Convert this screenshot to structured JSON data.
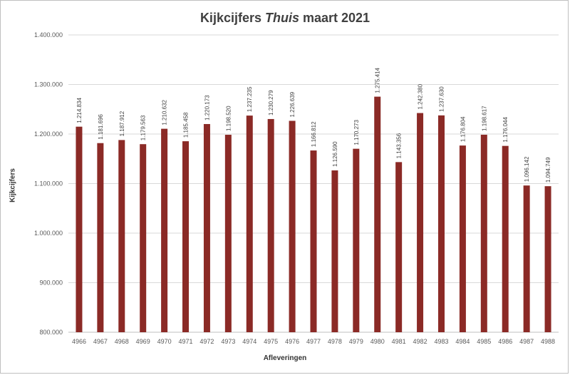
{
  "chart_data": {
    "type": "bar",
    "title_prefix": "Kijkcijfers ",
    "title_italic": "Thuis",
    "title_suffix": " maart 2021",
    "xlabel": "Afleveringen",
    "ylabel": "Kijkcijfers",
    "ylim": [
      800000,
      1400000
    ],
    "yticks": [
      "800.000",
      "900.000",
      "1.000.000",
      "1.100.000",
      "1.200.000",
      "1.300.000",
      "1.400.000"
    ],
    "bar_color": "#8B2A26",
    "categories": [
      "4966",
      "4967",
      "4968",
      "4969",
      "4970",
      "4971",
      "4972",
      "4973",
      "4974",
      "4975",
      "4976",
      "4977",
      "4978",
      "4979",
      "4980",
      "4981",
      "4982",
      "4983",
      "4984",
      "4985",
      "4986",
      "4987",
      "4988"
    ],
    "values": [
      1214834,
      1181696,
      1187912,
      1179563,
      1210632,
      1185458,
      1220173,
      1198520,
      1237235,
      1230279,
      1226639,
      1166812,
      1126590,
      1170273,
      1275414,
      1143356,
      1242380,
      1237630,
      1176804,
      1198617,
      1176044,
      1096142,
      1094749
    ],
    "value_labels": [
      "1.214.834",
      "1.181.696",
      "1.187.912",
      "1.179.563",
      "1.210.632",
      "1.185.458",
      "1.220.173",
      "1.198.520",
      "1.237.235",
      "1.230.279",
      "1.226.639",
      "1.166.812",
      "1.126.590",
      "1.170.273",
      "1.275.414",
      "1.143.356",
      "1.242.380",
      "1.237.630",
      "1.176.804",
      "1.198.617",
      "1.176.044",
      "1.096.142",
      "1.094.749"
    ],
    "grid": true
  }
}
